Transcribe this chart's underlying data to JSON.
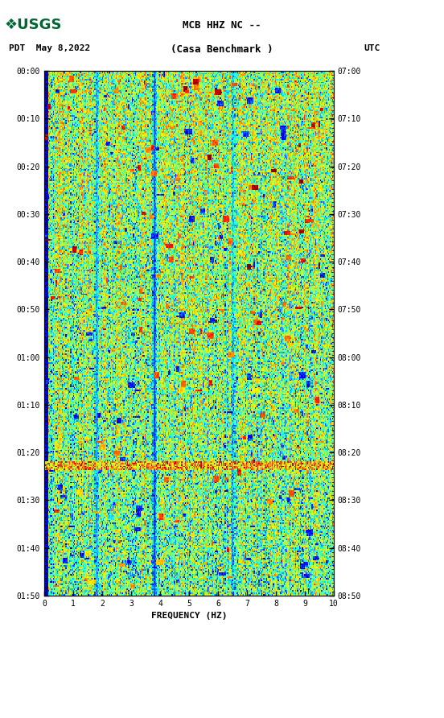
{
  "title_line1": "MCB HHZ NC --",
  "title_line2": "(Casa Benchmark )",
  "date_label": "PDT  May 8,2022",
  "utc_label": "UTC",
  "xlabel": "FREQUENCY (HZ)",
  "x_ticks": [
    0,
    1,
    2,
    3,
    4,
    5,
    6,
    7,
    8,
    9,
    10
  ],
  "x_min": 0,
  "x_max": 10,
  "y_left_labels": [
    "00:00",
    "00:10",
    "00:20",
    "00:30",
    "00:40",
    "00:50",
    "01:00",
    "01:10",
    "01:20",
    "01:30",
    "01:40",
    "01:50"
  ],
  "y_right_labels": [
    "07:00",
    "07:10",
    "07:20",
    "07:30",
    "07:40",
    "07:50",
    "08:00",
    "08:10",
    "08:20",
    "08:30",
    "08:40",
    "08:50"
  ],
  "colormap": "jet",
  "bg_color": "#ffffff",
  "left_bar_color": "#0000bb",
  "figsize": [
    5.52,
    8.92
  ],
  "dpi": 100,
  "n_freq": 300,
  "n_time": 360,
  "seed": 12345
}
